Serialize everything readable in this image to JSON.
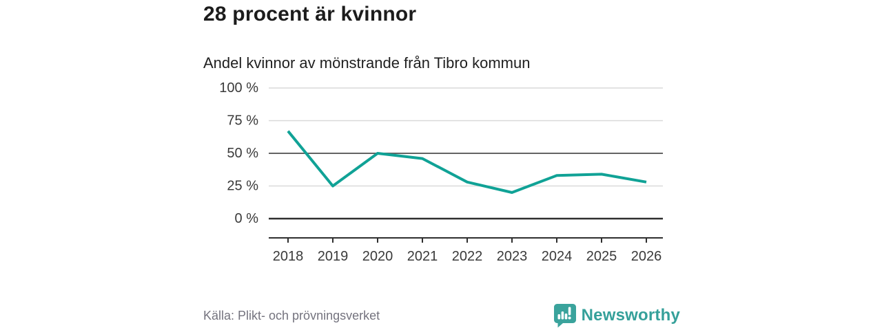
{
  "chart_data": {
    "type": "line",
    "title": "28 procent är kvinnor",
    "subtitle": "Andel kvinnor av mönstrande från Tibro kommun",
    "x": [
      "2018",
      "2019",
      "2020",
      "2021",
      "2022",
      "2023",
      "2024",
      "2025",
      "2026"
    ],
    "series": [
      {
        "name": "Andel kvinnor av mönstrande",
        "values": [
          67,
          25,
          50,
          46,
          28,
          20,
          33,
          34,
          28
        ]
      }
    ],
    "unit": "%",
    "ylim": [
      0,
      100
    ],
    "yticks": [
      0,
      25,
      50,
      75,
      100
    ],
    "ytick_labels": [
      "0 %",
      "25 %",
      "50 %",
      "75 %",
      "100 %"
    ],
    "grid": "horizontal",
    "emphasized_gridlines": [
      0,
      50
    ],
    "legend": "none",
    "line_color": "#10a296"
  },
  "footer": {
    "source": "Källa: Plikt- och prövningsverket",
    "brand": "Newsworthy",
    "brand_color": "#35a09a"
  }
}
